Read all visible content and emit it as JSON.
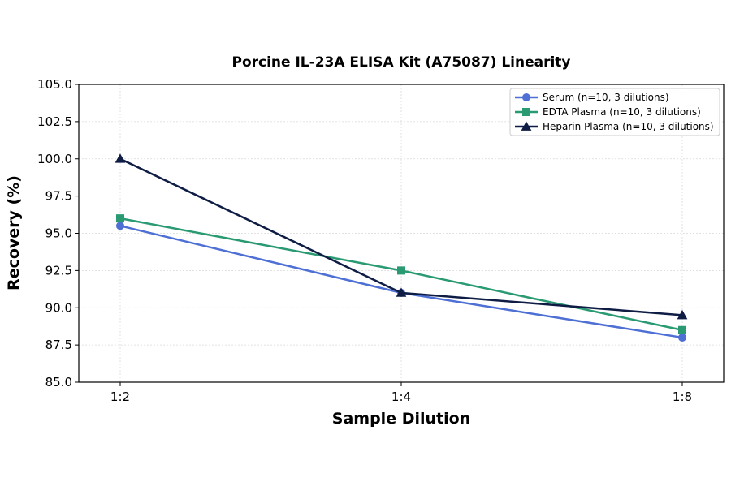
{
  "chart_data": {
    "type": "line",
    "title": "Porcine IL-23A ELISA Kit (A75087) Linearity",
    "xlabel": "Sample Dilution",
    "ylabel": "Recovery (%)",
    "categories": [
      "1:2",
      "1:4",
      "1:8"
    ],
    "ylim": [
      85.0,
      105.0
    ],
    "yticks": [
      "85.0",
      "87.5",
      "90.0",
      "92.5",
      "95.0",
      "97.5",
      "100.0",
      "102.5",
      "105.0"
    ],
    "grid": true,
    "legend_position": "top-right",
    "series": [
      {
        "name": "Serum (n=10, 3 dilutions)",
        "values": [
          95.5,
          91.0,
          88.0
        ],
        "color": "#4e6fd4",
        "marker": "circle"
      },
      {
        "name": "EDTA Plasma (n=10, 3 dilutions)",
        "values": [
          96.0,
          92.5,
          88.5
        ],
        "color": "#2a9a72",
        "marker": "square"
      },
      {
        "name": "Heparin Plasma (n=10, 3 dilutions)",
        "values": [
          100.0,
          91.0,
          89.5
        ],
        "color": "#0f1d45",
        "marker": "triangle"
      }
    ]
  }
}
